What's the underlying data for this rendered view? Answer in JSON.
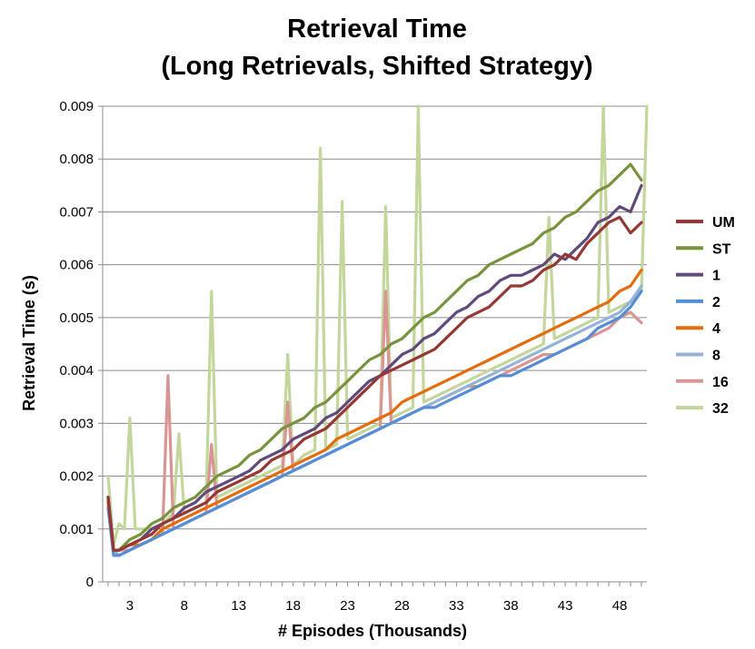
{
  "chart_data": {
    "type": "line",
    "title_lines": [
      "Retrieval Time",
      "(Long Retrievals, Shifted Strategy)"
    ],
    "xlabel": "# Episodes (Thousands)",
    "ylabel": "Retrieval Time (s)",
    "xlim": [
      0.5,
      50.5
    ],
    "ylim": [
      0,
      0.009
    ],
    "x_ticks": [
      3,
      8,
      13,
      18,
      23,
      28,
      33,
      38,
      43,
      48
    ],
    "y_ticks": [
      0,
      0.001,
      0.002,
      0.003,
      0.004,
      0.005,
      0.006,
      0.007,
      0.008,
      0.009
    ],
    "y_tick_labels": [
      "0",
      "0.001",
      "0.002",
      "0.003",
      "0.004",
      "0.005",
      "0.006",
      "0.007",
      "0.008",
      "0.009"
    ],
    "grid": "horizontal",
    "legend_position": "right",
    "series": [
      {
        "name": "UM",
        "color": "#953735",
        "x": [
          1,
          1.5,
          2,
          3,
          4,
          5,
          6,
          7,
          8,
          9,
          10,
          11,
          12,
          13,
          14,
          15,
          16,
          17,
          18,
          19,
          20,
          21,
          22,
          23,
          24,
          25,
          26,
          27,
          28,
          29,
          30,
          31,
          32,
          33,
          34,
          35,
          36,
          37,
          38,
          39,
          40,
          41,
          42,
          43,
          44,
          45,
          46,
          47,
          48,
          49,
          50
        ],
        "y": [
          0.0016,
          0.0006,
          0.0006,
          0.0007,
          0.0008,
          0.0009,
          0.0011,
          0.0012,
          0.0013,
          0.0014,
          0.0015,
          0.0017,
          0.0018,
          0.0019,
          0.002,
          0.0021,
          0.0023,
          0.0024,
          0.0025,
          0.0027,
          0.0028,
          0.0029,
          0.0031,
          0.0033,
          0.0035,
          0.0037,
          0.0039,
          0.004,
          0.0041,
          0.0042,
          0.0043,
          0.0044,
          0.0046,
          0.0048,
          0.005,
          0.0051,
          0.0052,
          0.0054,
          0.0056,
          0.0056,
          0.0057,
          0.0059,
          0.006,
          0.0062,
          0.0061,
          0.0064,
          0.0066,
          0.0068,
          0.0069,
          0.0066,
          0.0068
        ]
      },
      {
        "name": "ST",
        "color": "#77933c",
        "x": [
          1,
          1.5,
          2,
          3,
          4,
          5,
          6,
          7,
          8,
          9,
          10,
          11,
          12,
          13,
          14,
          15,
          16,
          17,
          18,
          19,
          20,
          21,
          22,
          23,
          24,
          25,
          26,
          27,
          28,
          29,
          30,
          31,
          32,
          33,
          34,
          35,
          36,
          37,
          38,
          39,
          40,
          41,
          42,
          43,
          44,
          45,
          46,
          47,
          48,
          49,
          50
        ],
        "y": [
          0.0016,
          0.0006,
          0.0006,
          0.0008,
          0.0009,
          0.0011,
          0.0012,
          0.0014,
          0.0015,
          0.0016,
          0.0018,
          0.002,
          0.0021,
          0.0022,
          0.0024,
          0.0025,
          0.0027,
          0.0029,
          0.003,
          0.0031,
          0.0033,
          0.0034,
          0.0036,
          0.0038,
          0.004,
          0.0042,
          0.0043,
          0.0045,
          0.0046,
          0.0048,
          0.005,
          0.0051,
          0.0053,
          0.0055,
          0.0057,
          0.0058,
          0.006,
          0.0061,
          0.0062,
          0.0063,
          0.0064,
          0.0066,
          0.0067,
          0.0069,
          0.007,
          0.0072,
          0.0074,
          0.0075,
          0.0077,
          0.0079,
          0.0076
        ]
      },
      {
        "name": "1",
        "color": "#604a7b",
        "x": [
          1,
          1.5,
          2,
          3,
          4,
          5,
          6,
          7,
          8,
          9,
          10,
          11,
          12,
          13,
          14,
          15,
          16,
          17,
          18,
          19,
          20,
          21,
          22,
          23,
          24,
          25,
          26,
          27,
          28,
          29,
          30,
          31,
          32,
          33,
          34,
          35,
          36,
          37,
          38,
          39,
          40,
          41,
          42,
          43,
          44,
          45,
          46,
          47,
          48,
          49,
          50
        ],
        "y": [
          0.0016,
          0.0006,
          0.0006,
          0.0007,
          0.0008,
          0.001,
          0.0011,
          0.0012,
          0.0014,
          0.0015,
          0.0017,
          0.0018,
          0.0019,
          0.002,
          0.0021,
          0.0023,
          0.0024,
          0.0025,
          0.0027,
          0.0028,
          0.0029,
          0.0031,
          0.0032,
          0.0034,
          0.0036,
          0.0038,
          0.0039,
          0.0041,
          0.0043,
          0.0044,
          0.0046,
          0.0047,
          0.0049,
          0.0051,
          0.0052,
          0.0054,
          0.0055,
          0.0057,
          0.0058,
          0.0058,
          0.0059,
          0.006,
          0.0062,
          0.0061,
          0.0063,
          0.0065,
          0.0068,
          0.0069,
          0.0071,
          0.007,
          0.0075
        ]
      },
      {
        "name": "2",
        "color": "#558ed5",
        "x": [
          1,
          1.5,
          2,
          3,
          4,
          5,
          6,
          7,
          8,
          9,
          10,
          11,
          12,
          13,
          14,
          15,
          16,
          17,
          18,
          19,
          20,
          21,
          22,
          23,
          24,
          25,
          26,
          27,
          28,
          29,
          30,
          31,
          32,
          33,
          34,
          35,
          36,
          37,
          38,
          39,
          40,
          41,
          42,
          43,
          44,
          45,
          46,
          47,
          48,
          49,
          50
        ],
        "y": [
          0.0014,
          0.0005,
          0.0005,
          0.0006,
          0.0007,
          0.0008,
          0.0009,
          0.001,
          0.0011,
          0.0012,
          0.0013,
          0.0014,
          0.0015,
          0.0016,
          0.0017,
          0.0018,
          0.0019,
          0.002,
          0.0021,
          0.0022,
          0.0023,
          0.0024,
          0.0025,
          0.0026,
          0.0027,
          0.0028,
          0.0029,
          0.003,
          0.0031,
          0.0032,
          0.0033,
          0.0033,
          0.0034,
          0.0035,
          0.0036,
          0.0037,
          0.0038,
          0.0039,
          0.0039,
          0.004,
          0.0041,
          0.0042,
          0.0043,
          0.0044,
          0.0045,
          0.0046,
          0.0048,
          0.0049,
          0.005,
          0.0052,
          0.0055
        ]
      },
      {
        "name": "4",
        "color": "#e46c0a",
        "x": [
          1,
          1.5,
          2,
          3,
          4,
          5,
          6,
          7,
          8,
          9,
          10,
          11,
          12,
          13,
          14,
          15,
          16,
          17,
          18,
          19,
          20,
          21,
          22,
          23,
          24,
          25,
          26,
          27,
          28,
          29,
          30,
          31,
          32,
          33,
          34,
          35,
          36,
          37,
          38,
          39,
          40,
          41,
          42,
          43,
          44,
          45,
          46,
          47,
          48,
          49,
          50
        ],
        "y": [
          0.0015,
          0.0006,
          0.0006,
          0.0007,
          0.0007,
          0.0008,
          0.001,
          0.0011,
          0.0012,
          0.0013,
          0.0014,
          0.0015,
          0.0016,
          0.0017,
          0.0018,
          0.0019,
          0.002,
          0.0021,
          0.0022,
          0.0023,
          0.0024,
          0.0025,
          0.0027,
          0.0028,
          0.0029,
          0.003,
          0.0031,
          0.0032,
          0.0034,
          0.0035,
          0.0036,
          0.0037,
          0.0038,
          0.0039,
          0.004,
          0.0041,
          0.0042,
          0.0043,
          0.0044,
          0.0045,
          0.0046,
          0.0047,
          0.0048,
          0.0049,
          0.005,
          0.0051,
          0.0052,
          0.0053,
          0.0055,
          0.0056,
          0.0059
        ]
      },
      {
        "name": "8",
        "color": "#95b3d7",
        "x": [
          1,
          1.5,
          2,
          3,
          4,
          5,
          6,
          7,
          8,
          9,
          10,
          11,
          12,
          13,
          14,
          15,
          16,
          17,
          18,
          19,
          20,
          21,
          22,
          23,
          24,
          25,
          26,
          27,
          28,
          29,
          30,
          31,
          32,
          33,
          34,
          35,
          36,
          37,
          38,
          39,
          40,
          41,
          42,
          43,
          44,
          45,
          46,
          47,
          48,
          49,
          50
        ],
        "y": [
          0.0014,
          0.0006,
          0.0005,
          0.0006,
          0.0007,
          0.0008,
          0.0009,
          0.001,
          0.0011,
          0.0012,
          0.0013,
          0.0014,
          0.0015,
          0.0016,
          0.0017,
          0.0018,
          0.0019,
          0.002,
          0.0021,
          0.0022,
          0.0023,
          0.0024,
          0.0025,
          0.0026,
          0.0027,
          0.0028,
          0.0029,
          0.003,
          0.0031,
          0.0032,
          0.0033,
          0.0034,
          0.0035,
          0.0036,
          0.0037,
          0.0038,
          0.0039,
          0.004,
          0.0041,
          0.0042,
          0.0043,
          0.0044,
          0.0045,
          0.0046,
          0.0047,
          0.0048,
          0.0049,
          0.005,
          0.0051,
          0.0053,
          0.0056
        ]
      },
      {
        "name": "16",
        "color": "#d99594",
        "x": [
          1,
          1.5,
          2,
          3,
          4,
          5,
          6,
          6.5,
          7,
          8,
          9,
          10,
          10.5,
          11,
          12,
          13,
          14,
          15,
          16,
          17,
          17.5,
          18,
          19,
          20,
          21,
          22,
          23,
          24,
          25,
          26,
          26.5,
          27,
          28,
          29,
          30,
          31,
          32,
          33,
          34,
          35,
          36,
          37,
          38,
          39,
          40,
          41,
          42,
          43,
          44,
          45,
          46,
          47,
          48,
          49,
          50
        ],
        "y": [
          0.0016,
          0.0006,
          0.0006,
          0.0006,
          0.0007,
          0.0008,
          0.0009,
          0.0039,
          0.001,
          0.0011,
          0.0012,
          0.0013,
          0.0026,
          0.0014,
          0.0015,
          0.0016,
          0.0017,
          0.0018,
          0.0019,
          0.002,
          0.0034,
          0.0021,
          0.0022,
          0.0023,
          0.0024,
          0.0025,
          0.0026,
          0.0027,
          0.0028,
          0.0029,
          0.0055,
          0.003,
          0.0031,
          0.0032,
          0.0033,
          0.0034,
          0.0035,
          0.0036,
          0.0037,
          0.0037,
          0.0038,
          0.0039,
          0.004,
          0.0041,
          0.0042,
          0.0043,
          0.0043,
          0.0044,
          0.0045,
          0.0046,
          0.0047,
          0.0048,
          0.005,
          0.0051,
          0.0049
        ]
      },
      {
        "name": "32",
        "color": "#c3d69b",
        "x": [
          1,
          1.5,
          2,
          2.5,
          3,
          3.5,
          4,
          5,
          6,
          7,
          7.5,
          8,
          9,
          10,
          10.5,
          11,
          12,
          13,
          14,
          15,
          16,
          17,
          17.5,
          18,
          19,
          20,
          20.5,
          21,
          22,
          22.5,
          23,
          24,
          25,
          26,
          26.5,
          27,
          28,
          29,
          29.5,
          30,
          31,
          32,
          33,
          34,
          35,
          36,
          37,
          38,
          39,
          40,
          41,
          41.5,
          42,
          43,
          44,
          45,
          46,
          46.5,
          47,
          48,
          49,
          50,
          50.5
        ],
        "y": [
          0.002,
          0.0007,
          0.0011,
          0.001,
          0.0031,
          0.001,
          0.001,
          0.001,
          0.0011,
          0.0013,
          0.0028,
          0.0013,
          0.0014,
          0.0015,
          0.0055,
          0.0016,
          0.0017,
          0.0018,
          0.0019,
          0.002,
          0.0021,
          0.0022,
          0.0043,
          0.0022,
          0.0024,
          0.0025,
          0.0082,
          0.0025,
          0.0026,
          0.0072,
          0.0027,
          0.0028,
          0.0029,
          0.003,
          0.0071,
          0.0031,
          0.0032,
          0.0033,
          0.009,
          0.0034,
          0.0035,
          0.0036,
          0.0037,
          0.0038,
          0.0039,
          0.004,
          0.0041,
          0.0042,
          0.0043,
          0.0044,
          0.0045,
          0.0069,
          0.0046,
          0.0047,
          0.0048,
          0.0049,
          0.005,
          0.009,
          0.0051,
          0.0052,
          0.0053,
          0.0055,
          0.009
        ]
      }
    ]
  }
}
